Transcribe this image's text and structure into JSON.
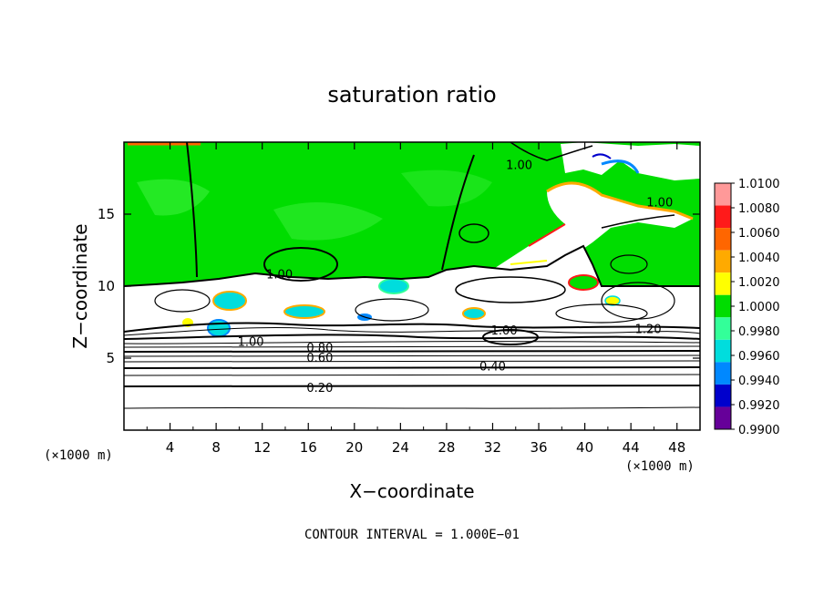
{
  "chart_data": {
    "type": "heatmap",
    "title": "saturation ratio",
    "xlabel": "X−coordinate",
    "ylabel": "Z−coordinate",
    "x_unit": "(×1000 m)",
    "y_unit": "(×1000 m)",
    "xlim": [
      0,
      50
    ],
    "ylim": [
      0,
      20
    ],
    "x_ticks": [
      4,
      8,
      12,
      16,
      20,
      24,
      28,
      32,
      36,
      40,
      44,
      48
    ],
    "y_ticks": [
      5,
      10,
      15
    ],
    "contour_note": "CONTOUR INTERVAL = 1.000E−01",
    "colorbar": {
      "levels": [
        "1.0100",
        "1.0080",
        "1.0060",
        "1.0040",
        "1.0020",
        "1.0000",
        "0.9980",
        "0.9960",
        "0.9940",
        "0.9920",
        "0.9900"
      ],
      "colors": [
        "#ff9999",
        "#ff1a1a",
        "#ff6600",
        "#ffaa00",
        "#ffff00",
        "#00dd00",
        "#33ff99",
        "#00dddd",
        "#0088ff",
        "#0000cc",
        "#660099"
      ]
    },
    "contour_labels": [
      {
        "text": "1.00",
        "x": 13.5,
        "z": 10.8
      },
      {
        "text": "1.00",
        "x": 34.3,
        "z": 18.4
      },
      {
        "text": "1.00",
        "x": 46.5,
        "z": 15.8
      },
      {
        "text": "1.00",
        "x": 11.0,
        "z": 6.1
      },
      {
        "text": "1.00",
        "x": 33.0,
        "z": 6.9
      },
      {
        "text": "1.20",
        "x": 45.5,
        "z": 7.0
      },
      {
        "text": "0.80",
        "x": 17.0,
        "z": 5.7
      },
      {
        "text": "0.60",
        "x": 17.0,
        "z": 5.0
      },
      {
        "text": "0.40",
        "x": 32.0,
        "z": 4.4
      },
      {
        "text": "0.20",
        "x": 17.0,
        "z": 2.9
      }
    ]
  }
}
